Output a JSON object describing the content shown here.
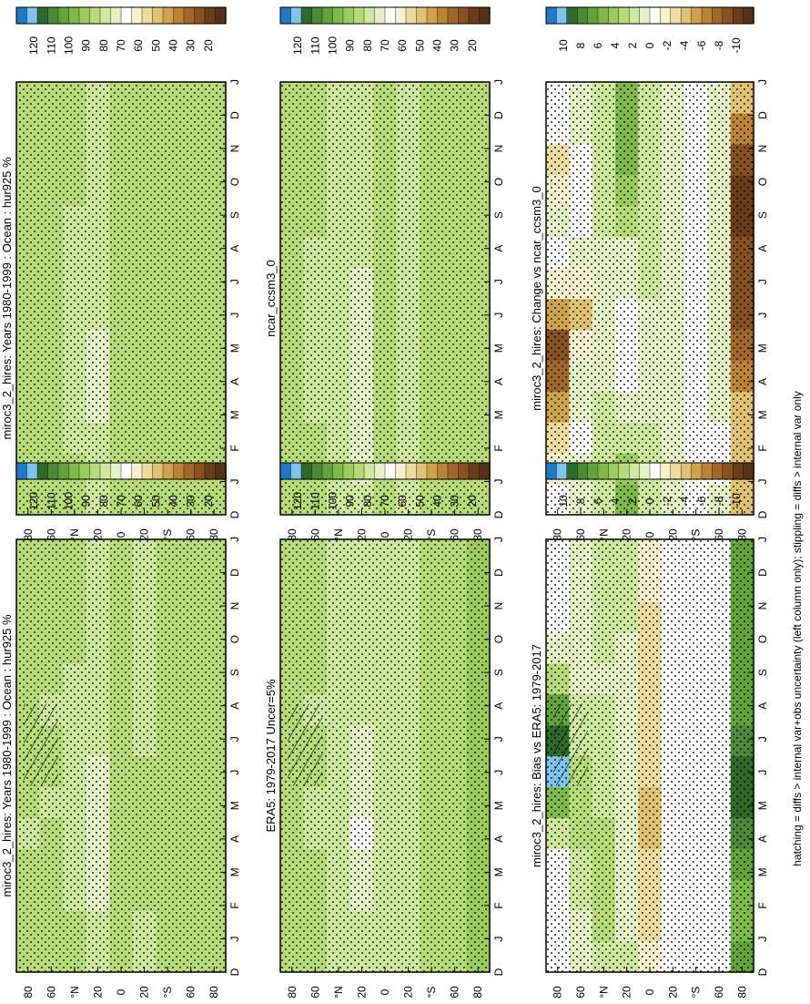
{
  "figure": {
    "footnote": "hatching = diffs > internal var+obs uncertainty (left column only); stippling = diffs > internal var only"
  },
  "colormaps": {
    "abs": [
      "#1f78c8",
      "#7ec5ee",
      "#2e6b2a",
      "#4b8b38",
      "#63a33c",
      "#7fb94a",
      "#9dcc5e",
      "#b6db78",
      "#cfe8a0",
      "#e5f2c8",
      "#ffffff",
      "#f8f1cf",
      "#ecdca0",
      "#dfc273",
      "#cfa24c",
      "#bb8334",
      "#a2672a",
      "#875122",
      "#6b3e1a",
      "#55301a"
    ],
    "diff": [
      "#1f78c8",
      "#7ec5ee",
      "#2e6b2a",
      "#4b8b38",
      "#63a33c",
      "#7fb94a",
      "#9dcc5e",
      "#b6db78",
      "#cfe8a0",
      "#e5f2c8",
      "#ffffff",
      "#f8f1cf",
      "#ecdca0",
      "#dfc273",
      "#cfa24c",
      "#bb8334",
      "#a2672a",
      "#875122",
      "#6b3e1a",
      "#55301a"
    ]
  },
  "chart_data": [
    {
      "type": "heatmap",
      "title": "miroc3_2_hires: Years 1980-1999 : Ocean : hur925 %",
      "colorbar_key": "abs",
      "colorbar_ticks": [
        "120",
        "110",
        "100",
        "90",
        "80",
        "70",
        "60",
        "50",
        "40",
        "30",
        "20"
      ],
      "x_ticks": [
        "D",
        "J",
        "F",
        "M",
        "A",
        "M",
        "J",
        "J",
        "A",
        "S",
        "O",
        "N",
        "D",
        "J"
      ],
      "y_ticks": [
        "80",
        "60",
        "°N",
        "20",
        "0",
        "20",
        "°S",
        "60",
        "80"
      ],
      "latitudes": [
        80,
        60,
        40,
        20,
        0,
        -20,
        -40,
        -60,
        -80
      ],
      "values": [
        [
          82,
          82,
          83,
          82,
          81,
          82,
          83,
          84,
          84,
          83,
          82,
          82,
          82,
          82
        ],
        [
          84,
          84,
          83,
          82,
          82,
          81,
          82,
          82,
          81,
          82,
          82,
          83,
          84,
          84
        ],
        [
          83,
          82,
          80,
          78,
          77,
          78,
          79,
          80,
          80,
          81,
          82,
          83,
          83,
          83
        ],
        [
          79,
          77,
          74,
          72,
          71,
          72,
          74,
          76,
          77,
          78,
          78,
          79,
          79,
          79
        ],
        [
          83,
          83,
          82,
          82,
          82,
          82,
          82,
          83,
          83,
          83,
          83,
          83,
          83,
          83
        ],
        [
          81,
          81,
          82,
          82,
          82,
          82,
          82,
          81,
          81,
          81,
          81,
          81,
          81,
          81
        ],
        [
          82,
          82,
          82,
          82,
          82,
          82,
          82,
          82,
          82,
          82,
          82,
          82,
          82,
          82
        ],
        [
          85,
          85,
          85,
          85,
          85,
          85,
          85,
          85,
          85,
          85,
          85,
          85,
          85,
          85
        ],
        [
          87,
          87,
          87,
          87,
          86,
          86,
          86,
          86,
          86,
          86,
          87,
          87,
          87,
          87
        ]
      ]
    },
    {
      "type": "heatmap",
      "title": "miroc3_2_hires: Years 1980-1999 : Ocean : hur925 %",
      "colorbar_key": "abs",
      "colorbar_ticks": [
        "120",
        "110",
        "100",
        "90",
        "80",
        "70",
        "60",
        "50",
        "40",
        "30",
        "20"
      ],
      "x_ticks": [
        "D",
        "J",
        "F",
        "M",
        "A",
        "M",
        "J",
        "J",
        "A",
        "S",
        "O",
        "N",
        "D",
        "J"
      ],
      "y_ticks": [
        "80",
        "60",
        "°N",
        "20",
        "0",
        "20",
        "°S",
        "60",
        "80"
      ],
      "latitudes": [
        80,
        60,
        40,
        20,
        0,
        -20,
        -40,
        -60,
        -80
      ],
      "values": [
        [
          83,
          83,
          83,
          82,
          82,
          82,
          83,
          84,
          84,
          83,
          82,
          82,
          83,
          83
        ],
        [
          83,
          83,
          82,
          82,
          82,
          82,
          82,
          82,
          82,
          82,
          82,
          83,
          83,
          83
        ],
        [
          82,
          82,
          81,
          80,
          79,
          79,
          80,
          80,
          80,
          81,
          82,
          82,
          82,
          82
        ],
        [
          81,
          79,
          76,
          74,
          73,
          74,
          76,
          78,
          79,
          80,
          80,
          81,
          81,
          81
        ],
        [
          84,
          84,
          84,
          83,
          83,
          83,
          83,
          84,
          84,
          84,
          84,
          84,
          84,
          84
        ],
        [
          82,
          82,
          82,
          82,
          82,
          82,
          82,
          82,
          82,
          82,
          82,
          82,
          82,
          82
        ],
        [
          82,
          82,
          82,
          82,
          82,
          82,
          82,
          82,
          82,
          82,
          82,
          82,
          82,
          82
        ],
        [
          84,
          84,
          84,
          84,
          84,
          84,
          84,
          84,
          84,
          84,
          84,
          84,
          84,
          84
        ],
        [
          86,
          86,
          86,
          86,
          86,
          86,
          86,
          86,
          86,
          86,
          86,
          86,
          86,
          86
        ]
      ]
    },
    {
      "type": "heatmap",
      "title": "ERA5: 1979-2017 Uncer=5%",
      "colorbar_key": "abs",
      "colorbar_ticks": [
        "120",
        "110",
        "100",
        "90",
        "80",
        "70",
        "60",
        "50",
        "40",
        "30",
        "20"
      ],
      "x_ticks": [
        "D",
        "J",
        "F",
        "M",
        "A",
        "M",
        "J",
        "J",
        "A",
        "S",
        "O",
        "N",
        "D",
        "J"
      ],
      "y_ticks": [
        "80",
        "60",
        "°N",
        "20",
        "0",
        "20",
        "°S",
        "60",
        "80"
      ],
      "latitudes": [
        80,
        60,
        40,
        20,
        0,
        -20,
        -40,
        -60,
        -80
      ],
      "values": [
        [
          83,
          83,
          83,
          82,
          82,
          83,
          84,
          85,
          85,
          84,
          83,
          83,
          83,
          83
        ],
        [
          83,
          83,
          82,
          82,
          81,
          81,
          82,
          82,
          81,
          82,
          82,
          83,
          83,
          83
        ],
        [
          81,
          80,
          78,
          77,
          76,
          77,
          78,
          79,
          79,
          80,
          80,
          81,
          81,
          81
        ],
        [
          77,
          76,
          73,
          71,
          70,
          71,
          73,
          75,
          76,
          77,
          77,
          77,
          77,
          77
        ],
        [
          81,
          81,
          81,
          80,
          80,
          80,
          81,
          81,
          81,
          81,
          81,
          81,
          81,
          81
        ],
        [
          81,
          81,
          81,
          81,
          81,
          81,
          81,
          81,
          81,
          81,
          81,
          81,
          81,
          81
        ],
        [
          82,
          82,
          82,
          82,
          82,
          82,
          82,
          82,
          82,
          82,
          82,
          82,
          82,
          82
        ],
        [
          85,
          85,
          85,
          85,
          85,
          85,
          85,
          85,
          85,
          85,
          85,
          85,
          85,
          85
        ],
        [
          89,
          89,
          89,
          88,
          88,
          88,
          88,
          88,
          88,
          88,
          89,
          89,
          89,
          89
        ]
      ]
    },
    {
      "type": "heatmap",
      "title": "ncar_ccsm3_0",
      "colorbar_key": "abs",
      "colorbar_ticks": [
        "120",
        "110",
        "100",
        "90",
        "80",
        "70",
        "60",
        "50",
        "40",
        "30",
        "20"
      ],
      "x_ticks": [
        "D",
        "J",
        "F",
        "M",
        "A",
        "M",
        "J",
        "J",
        "A",
        "S",
        "O",
        "N",
        "D",
        "J"
      ],
      "y_ticks": [
        "80",
        "60",
        "°N",
        "20",
        "0",
        "20",
        "°S",
        "60",
        "80"
      ],
      "latitudes": [
        80,
        60,
        40,
        20,
        0,
        -20,
        -40,
        -60,
        -80
      ],
      "values": [
        [
          83,
          83,
          83,
          82,
          82,
          82,
          82,
          83,
          83,
          83,
          82,
          82,
          83,
          83
        ],
        [
          82,
          82,
          82,
          81,
          81,
          81,
          81,
          81,
          81,
          82,
          82,
          82,
          82,
          82
        ],
        [
          80,
          80,
          79,
          78,
          78,
          78,
          79,
          79,
          79,
          79,
          80,
          80,
          80,
          80
        ],
        [
          76,
          75,
          74,
          73,
          72,
          73,
          74,
          75,
          76,
          76,
          76,
          76,
          76,
          76
        ],
        [
          82,
          82,
          82,
          82,
          82,
          82,
          82,
          82,
          82,
          82,
          82,
          82,
          82,
          82
        ],
        [
          81,
          81,
          81,
          81,
          81,
          81,
          81,
          81,
          81,
          81,
          81,
          81,
          81,
          81
        ],
        [
          82,
          82,
          82,
          82,
          82,
          82,
          82,
          82,
          82,
          82,
          82,
          82,
          82,
          82
        ],
        [
          84,
          84,
          84,
          84,
          84,
          84,
          84,
          84,
          84,
          84,
          84,
          84,
          84,
          84
        ],
        [
          86,
          86,
          86,
          86,
          86,
          86,
          86,
          86,
          86,
          86,
          86,
          86,
          86,
          86
        ]
      ]
    },
    {
      "type": "heatmap",
      "title": "miroc3_2_hires: Bias vs ERA5: 1979-2017",
      "colorbar_key": "diff",
      "colorbar_ticks": [
        "10",
        "8",
        "6",
        "4",
        "2",
        "0",
        "-2",
        "-4",
        "-6",
        "-8",
        "-10"
      ],
      "x_ticks": [
        "D",
        "J",
        "F",
        "M",
        "A",
        "M",
        "J",
        "J",
        "A",
        "S",
        "O",
        "N",
        "D",
        "J"
      ],
      "y_ticks": [
        "80",
        "60",
        "°N",
        "20",
        "0",
        "20",
        "°S",
        "60",
        "80"
      ],
      "latitudes": [
        80,
        60,
        40,
        20,
        0,
        -20,
        -40,
        -60,
        -80
      ],
      "values": [
        [
          0,
          0,
          -1,
          0,
          2,
          5,
          9,
          8,
          6,
          3,
          1,
          0,
          0,
          0
        ],
        [
          1,
          1,
          2,
          2,
          3,
          3,
          3,
          2,
          2,
          1,
          1,
          1,
          1,
          1
        ],
        [
          2,
          3,
          3,
          3,
          3,
          2,
          2,
          2,
          2,
          1,
          2,
          2,
          2,
          2
        ],
        [
          2,
          1,
          1,
          1,
          1,
          1,
          1,
          1,
          1,
          1,
          1,
          2,
          2,
          2
        ],
        [
          -2,
          -3,
          -3,
          -3,
          -4,
          -4,
          -3,
          -3,
          -3,
          -3,
          -3,
          -3,
          -2,
          -2
        ],
        [
          -1,
          -1,
          -1,
          -1,
          -1,
          -1,
          -1,
          -1,
          -1,
          -1,
          -1,
          -1,
          -1,
          -1
        ],
        [
          0,
          0,
          -1,
          0,
          0,
          0,
          0,
          0,
          0,
          0,
          0,
          0,
          0,
          0
        ],
        [
          0,
          0,
          0,
          0,
          0,
          0,
          0,
          0,
          0,
          0,
          0,
          0,
          0,
          0
        ],
        [
          6,
          5,
          5,
          6,
          7,
          8,
          8,
          7,
          6,
          6,
          6,
          6,
          6,
          6
        ]
      ]
    },
    {
      "type": "heatmap",
      "title": "miroc3_2_hires: Change vs ncar_ccsm3_0",
      "colorbar_key": "diff",
      "colorbar_ticks": [
        "10",
        "8",
        "6",
        "4",
        "2",
        "0",
        "-2",
        "-4",
        "-6",
        "-8",
        "-10"
      ],
      "x_ticks": [
        "D",
        "J",
        "F",
        "M",
        "A",
        "M",
        "J",
        "J",
        "A",
        "S",
        "O",
        "N",
        "D",
        "J"
      ],
      "y_ticks": [
        "80",
        "60",
        "°N",
        "20",
        "0",
        "20",
        "°S",
        "60",
        "80"
      ],
      "latitudes": [
        80,
        60,
        40,
        20,
        0,
        -20,
        -40,
        -60,
        -80
      ],
      "values": [
        [
          0,
          -2,
          -3,
          -5,
          -7,
          -8,
          -5,
          -2,
          0,
          1,
          -2,
          -3,
          0,
          0
        ],
        [
          1,
          1,
          0,
          1,
          1,
          -2,
          -4,
          -2,
          1,
          0,
          -1,
          -1,
          1,
          1
        ],
        [
          2,
          2,
          2,
          2,
          1,
          1,
          1,
          1,
          1,
          2,
          2,
          2,
          2,
          2
        ],
        [
          5,
          4,
          2,
          1,
          0,
          -1,
          0,
          1,
          1,
          3,
          4,
          5,
          5,
          5
        ],
        [
          2,
          2,
          2,
          1,
          1,
          1,
          1,
          2,
          2,
          2,
          2,
          2,
          2,
          2
        ],
        [
          1,
          1,
          1,
          1,
          1,
          1,
          1,
          1,
          1,
          1,
          1,
          1,
          1,
          1
        ],
        [
          0,
          0,
          0,
          0,
          0,
          0,
          0,
          0,
          0,
          0,
          0,
          0,
          0,
          0
        ],
        [
          1,
          0,
          0,
          1,
          1,
          1,
          1,
          1,
          1,
          1,
          1,
          1,
          1,
          1
        ],
        [
          -4,
          -4,
          -4,
          -4,
          -6,
          -7,
          -8,
          -8,
          -8,
          -9,
          -9,
          -8,
          -6,
          -4
        ]
      ]
    }
  ]
}
